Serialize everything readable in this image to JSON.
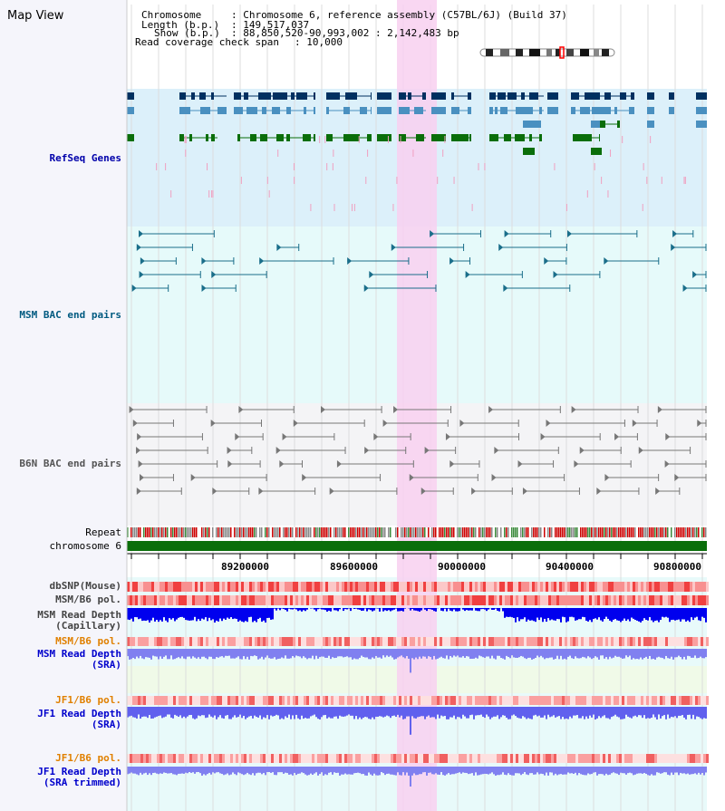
{
  "view": {
    "title": "Map View"
  },
  "chromosome_info": {
    "chromosome_key": "Chromosome",
    "chromosome_value": ": Chromosome 6, reference assembly (C57BL/6J) (Build 37)",
    "length_key": "Length (b.p.)",
    "length_value": ": 149,517,037",
    "show_key": "Show (b.p.)",
    "show_value": ": 88,850,520-90,993,002 : 2,142,483 bp",
    "coverage_key": "Read coverage check span",
    "coverage_value": ": 10,000"
  },
  "tracks": {
    "refseq": "RefSeq Genes",
    "msm_bac": "MSM BAC end pairs",
    "b6n_bac": "B6N BAC end pairs",
    "repeat": "Repeat",
    "chromosome": "chromosome 6",
    "dbsnp": "dbSNP(Mouse)",
    "msm_pol": "MSM/B6 pol.",
    "msm_depth_cap_1": "MSM Read Depth",
    "msm_depth_cap_2": "(Capillary)",
    "msm_pol_2": "MSM/B6 pol.",
    "msm_depth_sra_1": "MSM Read Depth",
    "msm_depth_sra_2": "(SRA)",
    "jf1_pol": "JF1/B6 pol.",
    "jf1_depth_sra_1": "JF1 Read Depth",
    "jf1_depth_sra_2": "(SRA)",
    "jf1_pol_2": "JF1/B6 pol.",
    "jf1_depth_trim_1": "JF1 Read Depth",
    "jf1_depth_trim_2": "(SRA trimmed)"
  },
  "axis": {
    "ticks": [
      "89200000",
      "89600000",
      "90000000",
      "90400000",
      "90800000"
    ]
  },
  "colors": {
    "refseq_label": "#0000aa",
    "msm_label": "#005a80",
    "b6n_label": "#555555",
    "orange_label": "#e08000",
    "blue_label": "#0000cc",
    "highlight": "#f8d0f0",
    "refseq_bg": "#dcf0fa",
    "msm_bg": "#e6fafa",
    "b6n_bg": "#f4f4f6"
  }
}
